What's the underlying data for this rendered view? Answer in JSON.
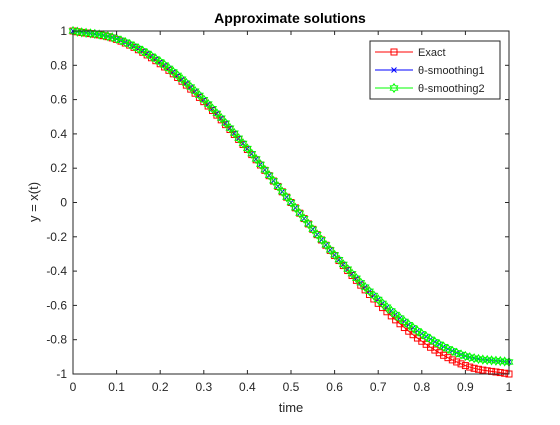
{
  "chart_data": {
    "type": "line",
    "title": "Approximate solutions",
    "xlabel": "time",
    "ylabel": "y = x(t)",
    "xlim": [
      0,
      1
    ],
    "ylim": [
      -1,
      1
    ],
    "xticks": [
      0,
      0.1,
      0.2,
      0.3,
      0.4,
      0.5,
      0.6,
      0.7,
      0.8,
      0.9,
      1
    ],
    "xtick_labels": [
      "0",
      "0.1",
      "0.2",
      "0.3",
      "0.4",
      "0.5",
      "0.6",
      "0.7",
      "0.8",
      "0.9",
      "1"
    ],
    "yticks": [
      -1,
      -0.8,
      -0.6,
      -0.4,
      -0.2,
      0,
      0.2,
      0.4,
      0.6,
      0.8,
      1
    ],
    "ytick_labels": [
      "-1",
      "-0.8",
      "-0.6",
      "-0.4",
      "-0.2",
      "0",
      "0.2",
      "0.4",
      "0.6",
      "0.8",
      "1"
    ],
    "grid": false,
    "legend_position": "top-right",
    "x": [
      0,
      0.1,
      0.2,
      0.3,
      0.4,
      0.5,
      0.6,
      0.7,
      0.8,
      0.9,
      1
    ],
    "series": [
      {
        "name": "Exact",
        "color": "#ff0000",
        "marker": "square",
        "values": [
          1,
          0.951,
          0.809,
          0.588,
          0.309,
          0,
          -0.309,
          -0.588,
          -0.809,
          -0.951,
          -1
        ]
      },
      {
        "name": "θ-smoothing1",
        "color": "#0000ff",
        "marker": "x",
        "values": [
          1,
          0.955,
          0.82,
          0.6,
          0.315,
          0,
          -0.305,
          -0.565,
          -0.765,
          -0.895,
          -0.93
        ]
      },
      {
        "name": "θ-smoothing2",
        "color": "#00ff00",
        "marker": "hexagram",
        "values": [
          1,
          0.955,
          0.82,
          0.6,
          0.315,
          0,
          -0.305,
          -0.565,
          -0.765,
          -0.895,
          -0.93
        ]
      }
    ]
  }
}
